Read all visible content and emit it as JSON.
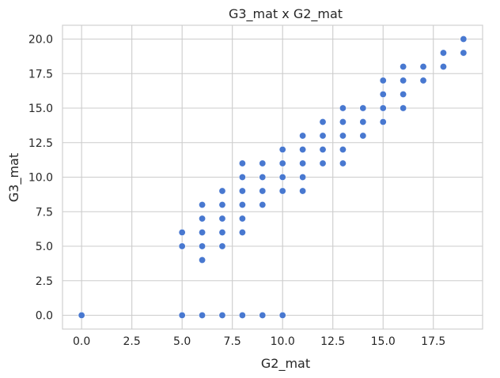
{
  "chart_data": {
    "type": "scatter",
    "title": "G3_mat x G2_mat",
    "xlabel": "G2_mat",
    "ylabel": "G3_mat",
    "xlim": [
      -0.95,
      19.95
    ],
    "ylim": [
      -1.0,
      21.0
    ],
    "xticks": [
      0.0,
      2.5,
      5.0,
      7.5,
      10.0,
      12.5,
      15.0,
      17.5
    ],
    "xtick_labels": [
      "0.0",
      "2.5",
      "5.0",
      "7.5",
      "10.0",
      "12.5",
      "15.0",
      "17.5"
    ],
    "yticks": [
      0.0,
      2.5,
      5.0,
      7.5,
      10.0,
      12.5,
      15.0,
      17.5,
      20.0
    ],
    "ytick_labels": [
      "0.0",
      "2.5",
      "5.0",
      "7.5",
      "10.0",
      "12.5",
      "15.0",
      "17.5",
      "20.0"
    ],
    "grid": true,
    "marker_color": "#4878d0",
    "points": [
      [
        0,
        0
      ],
      [
        5,
        0
      ],
      [
        5,
        5
      ],
      [
        5,
        6
      ],
      [
        6,
        0
      ],
      [
        6,
        4
      ],
      [
        6,
        5
      ],
      [
        6,
        6
      ],
      [
        6,
        7
      ],
      [
        6,
        8
      ],
      [
        7,
        0
      ],
      [
        7,
        5
      ],
      [
        7,
        6
      ],
      [
        7,
        7
      ],
      [
        7,
        8
      ],
      [
        7,
        9
      ],
      [
        8,
        0
      ],
      [
        8,
        6
      ],
      [
        8,
        7
      ],
      [
        8,
        8
      ],
      [
        8,
        9
      ],
      [
        8,
        10
      ],
      [
        8,
        11
      ],
      [
        9,
        0
      ],
      [
        9,
        8
      ],
      [
        9,
        9
      ],
      [
        9,
        10
      ],
      [
        9,
        11
      ],
      [
        10,
        0
      ],
      [
        10,
        9
      ],
      [
        10,
        10
      ],
      [
        10,
        11
      ],
      [
        10,
        12
      ],
      [
        11,
        9
      ],
      [
        11,
        10
      ],
      [
        11,
        11
      ],
      [
        11,
        12
      ],
      [
        11,
        13
      ],
      [
        12,
        11
      ],
      [
        12,
        12
      ],
      [
        12,
        13
      ],
      [
        12,
        14
      ],
      [
        13,
        11
      ],
      [
        13,
        12
      ],
      [
        13,
        13
      ],
      [
        13,
        14
      ],
      [
        13,
        15
      ],
      [
        14,
        13
      ],
      [
        14,
        14
      ],
      [
        14,
        15
      ],
      [
        15,
        14
      ],
      [
        15,
        15
      ],
      [
        15,
        16
      ],
      [
        15,
        17
      ],
      [
        16,
        15
      ],
      [
        16,
        16
      ],
      [
        16,
        17
      ],
      [
        16,
        18
      ],
      [
        17,
        17
      ],
      [
        17,
        18
      ],
      [
        18,
        18
      ],
      [
        18,
        19
      ],
      [
        19,
        19
      ],
      [
        19,
        20
      ]
    ]
  }
}
